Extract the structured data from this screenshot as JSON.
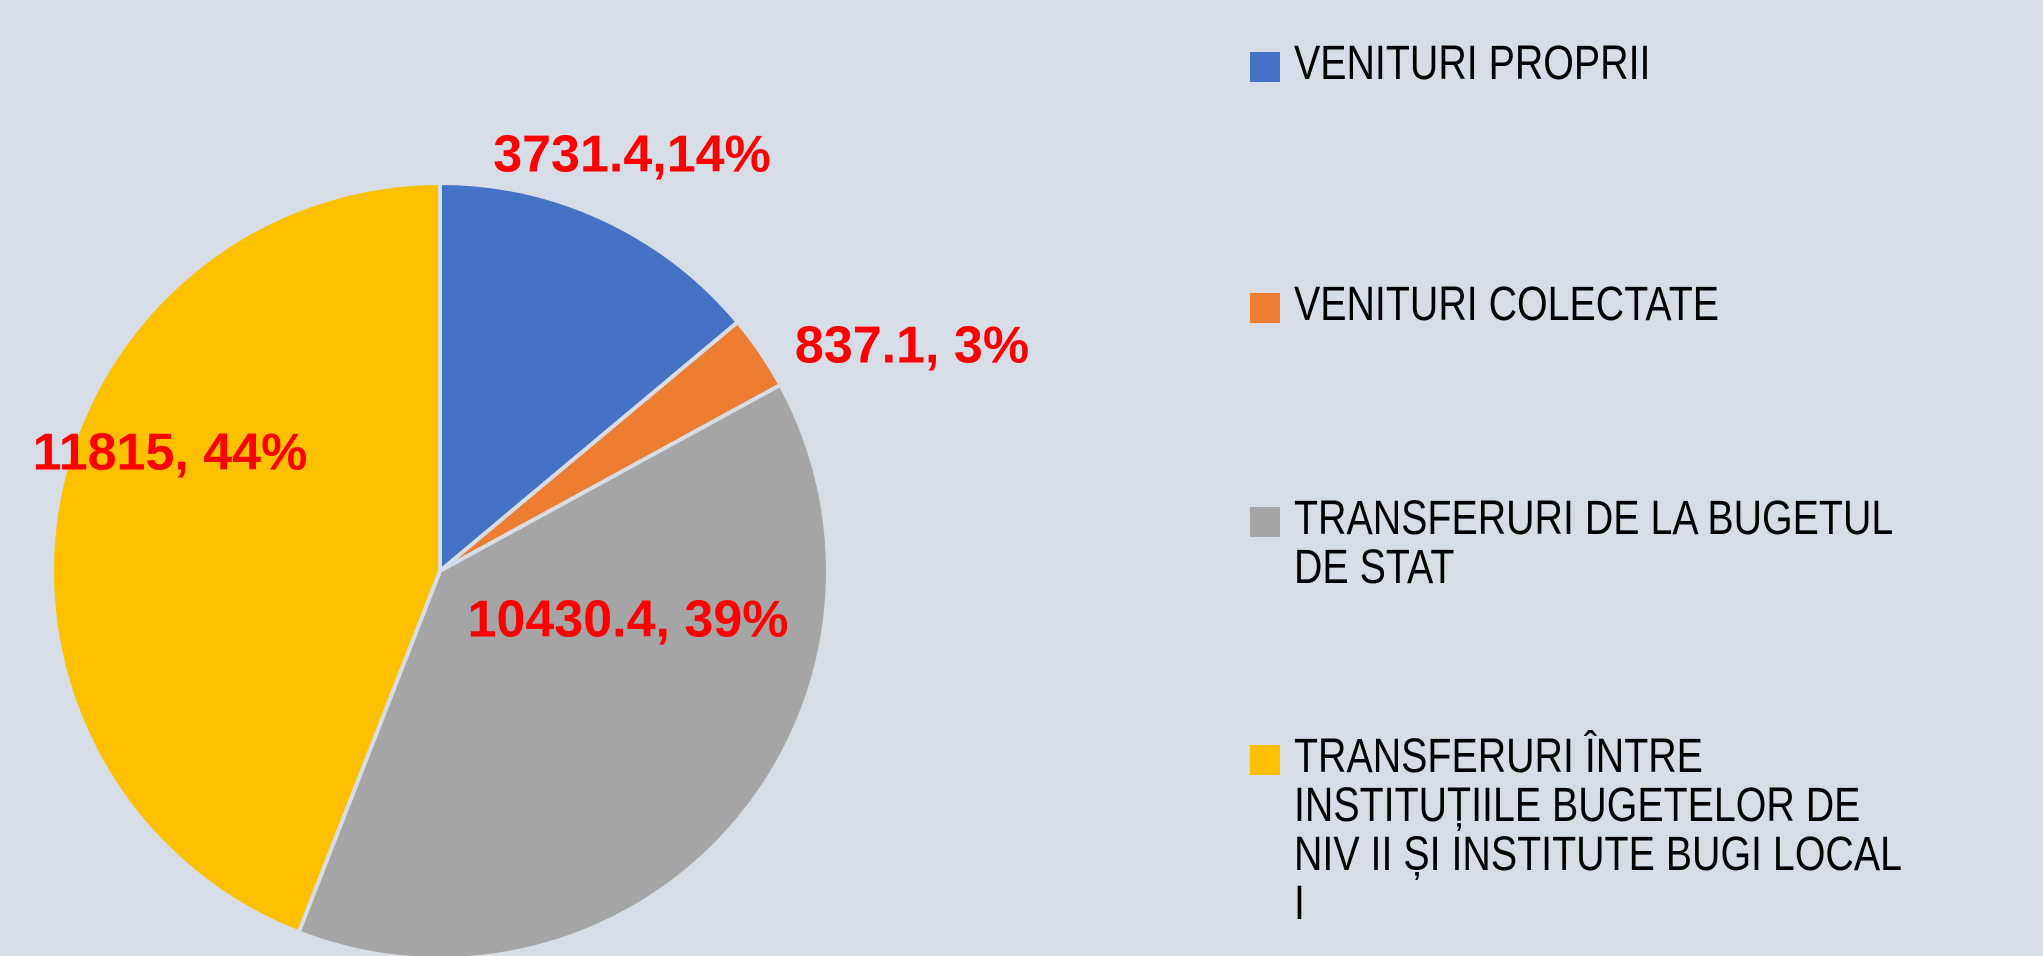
{
  "chart_data": {
    "type": "pie",
    "categories": [
      "VENITURI PROPRII",
      "VENITURI COLECTATE",
      "TRANSFERURI DE LA BUGETUL DE STAT",
      "TRANSFERURI ÎNTRE INSTITUȚIILE BUGETELOR DE NIV II ȘI INSTITUTE BUGI LOCAL I"
    ],
    "values": [
      3731.4,
      837.1,
      10430.4,
      11815
    ],
    "value_labels": [
      "3731.4,14%",
      "837.1, 3%",
      "10430.4, 39%",
      "11815, 44%"
    ],
    "colors": [
      "#4472c4",
      "#ed7d31",
      "#a5a5a5",
      "#ffc000"
    ],
    "label_color": "#ff0000",
    "legend": "right"
  }
}
